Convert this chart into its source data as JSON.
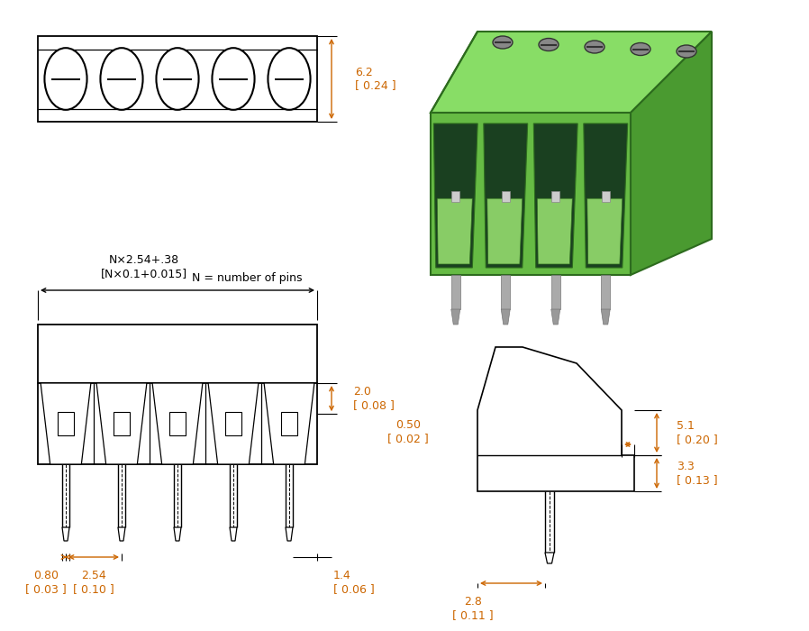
{
  "bg_color": "#ffffff",
  "line_color": "#000000",
  "dim_color": "#cc6600",
  "dim_6_2": "6.2\n[ 0.24 ]",
  "dim_Nx254": "N×2.54+.38\n[N×0.1+0.015]",
  "dim_N_label": "N = number of pins",
  "dim_080": "0.80\n[ 0.03 ]",
  "dim_254": "2.54\n[ 0.10 ]",
  "dim_14": "1.4\n[ 0.06 ]",
  "dim_20": "2.0\n[ 0.08 ]",
  "dim_51": "5.1\n[ 0.20 ]",
  "dim_33": "3.3\n[ 0.13 ]",
  "dim_050": "0.50\n[ 0.02 ]",
  "dim_28": "2.8\n[ 0.11 ]",
  "green_light": "#66bb44",
  "green_mid": "#4a9a30",
  "green_dark": "#2d6b1e",
  "green_top": "#88dd66",
  "pin_fill": "#aaaaaa",
  "pin_edge": "#777777"
}
